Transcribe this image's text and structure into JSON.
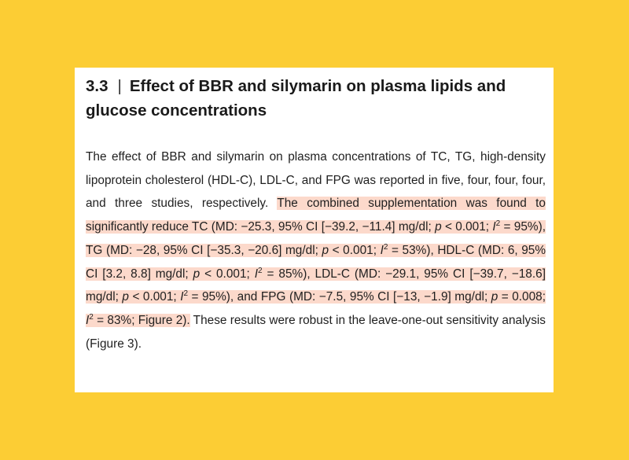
{
  "section": {
    "number": "3.3",
    "separator": "|",
    "title": "Effect of BBR and silymarin on plasma lipids and glucose concentrations"
  },
  "paragraph": {
    "intro": "The effect of BBR and silymarin on plasma concentrations of TC, TG, high-density lipoprotein cholesterol (HDL-C), LDL-C, and FPG was reported in five, four, four, four, and three studies, respectively.",
    "highlight": {
      "s1": "The combined supplementation was found to significantly reduce TC (MD: −25.3, 95% CI [−39.2, −11.4] mg/dl;",
      "p1": "p",
      "s2": "< 0.001;",
      "i1": "I",
      "sup1": "2",
      "s3": "= 95%), TG (MD: −28, 95% CI [−35.3, −20.6] mg/dl;",
      "p2": "p",
      "s4": "< 0.001;",
      "i2": "I",
      "sup2": "2",
      "s5": "= 53%), HDL-C (MD: 6, 95% CI [3.2, 8.8] mg/dl;",
      "p3": "p",
      "s6": "< 0.001;",
      "i3": "I",
      "sup3": "2",
      "s7": "= 85%), LDL-C (MD: −29.1, 95% CI [−39.7, −18.6] mg/dl;",
      "p4": "p",
      "s8": "< 0.001;",
      "i4": "I",
      "sup4": "2",
      "s9": "= 95%), and FPG (MD: −7.5, 95% CI [−13, −1.9] mg/dl;",
      "p5": "p",
      "s10": "= 0.008;",
      "i5": "I",
      "sup5": "2",
      "s11": "= 83%; Figure 2)."
    },
    "outro": "These results were robust in the leave-one-out sensitivity analysis (Figure 3)."
  }
}
